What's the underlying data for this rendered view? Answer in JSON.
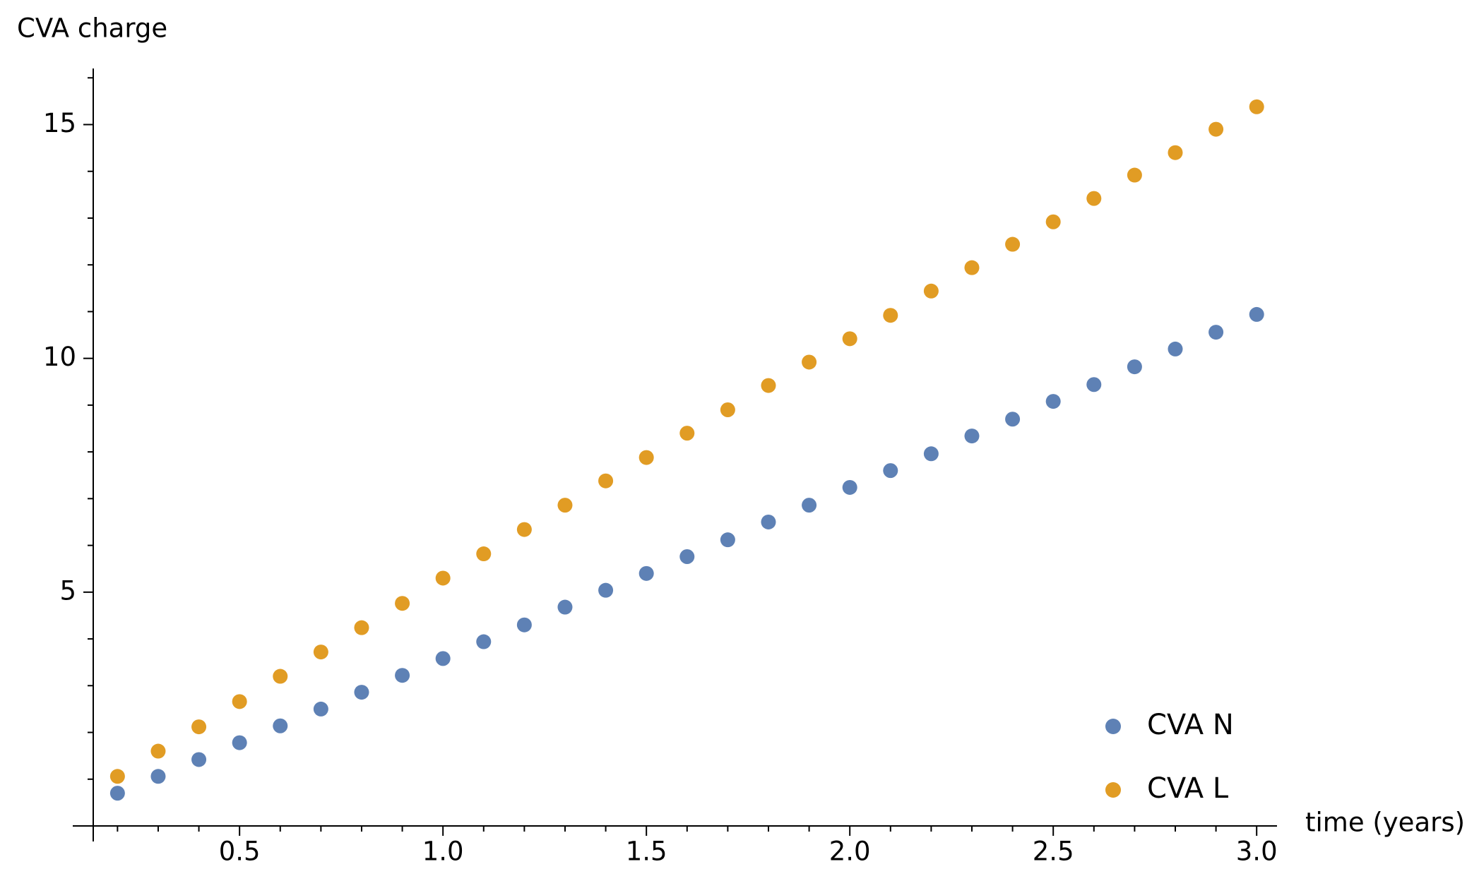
{
  "chart_data": {
    "type": "scatter",
    "y_label": "CVA charge",
    "x_label": "time (years)",
    "x": [
      0.2,
      0.3,
      0.4,
      0.5,
      0.6,
      0.7,
      0.8,
      0.9,
      1.0,
      1.1,
      1.2,
      1.3,
      1.4,
      1.5,
      1.6,
      1.7,
      1.8,
      1.9,
      2.0,
      2.1,
      2.2,
      2.3,
      2.4,
      2.5,
      2.6,
      2.7,
      2.8,
      2.9,
      3.0
    ],
    "series": [
      {
        "name": "CVA N",
        "color": "#5e81b5",
        "values": [
          0.7,
          1.06,
          1.42,
          1.78,
          2.14,
          2.5,
          2.86,
          3.22,
          3.58,
          3.94,
          4.3,
          4.68,
          5.04,
          5.4,
          5.76,
          6.12,
          6.5,
          6.86,
          7.24,
          7.6,
          7.96,
          8.34,
          8.7,
          9.08,
          9.44,
          9.82,
          10.2,
          10.56,
          10.94
        ]
      },
      {
        "name": "CVA L",
        "color": "#e19c24",
        "values": [
          1.06,
          1.6,
          2.12,
          2.66,
          3.2,
          3.72,
          4.24,
          4.76,
          5.3,
          5.82,
          6.34,
          6.86,
          7.38,
          7.88,
          8.4,
          8.9,
          9.42,
          9.92,
          10.42,
          10.92,
          11.44,
          11.94,
          12.44,
          12.92,
          13.42,
          13.92,
          14.4,
          14.9,
          15.38
        ]
      }
    ],
    "xlim": [
      0.09,
      3.05
    ],
    "ylim": [
      0,
      16.2
    ],
    "xticks": [
      0.5,
      {
        "value": 1,
        "label": "1.0"
      },
      1.5,
      {
        "value": 2,
        "label": "2.0"
      },
      2.5,
      {
        "value": 3,
        "label": "3.0"
      }
    ],
    "yticks": [
      5,
      10,
      15
    ],
    "xminorticks": [
      0.2,
      0.3,
      0.4,
      0.6,
      0.7,
      0.8,
      0.9,
      1.1,
      1.2,
      1.3,
      1.4,
      1.6,
      1.7,
      1.8,
      1.9,
      2.1,
      2.2,
      2.3,
      2.4,
      2.6,
      2.7,
      2.8,
      2.9
    ],
    "yminorticks": [
      1,
      2,
      3,
      4,
      6,
      7,
      8,
      9,
      11,
      12,
      13,
      14,
      16
    ],
    "legend": "bottom-right",
    "grid": false
  }
}
